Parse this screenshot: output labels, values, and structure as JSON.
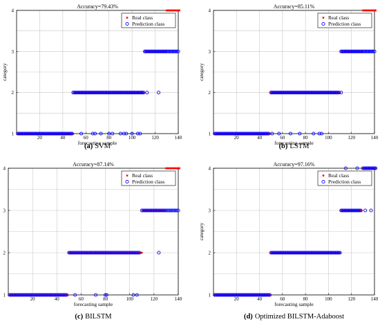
{
  "chart_data": [
    {
      "type": "scatter",
      "title": "Accuracy=79.43%",
      "caption_tag": "(a)",
      "caption_name": "SVM",
      "xlabel": "forecasting sample",
      "ylabel": "category",
      "xlim": [
        0,
        140
      ],
      "ylim": [
        1,
        4
      ],
      "xticks": [
        "20",
        "40",
        "60",
        "80",
        "100",
        "120",
        "140"
      ],
      "yticks": [
        "1",
        "2",
        "3",
        "4"
      ],
      "grid": true,
      "legend": "top-right",
      "series": [
        {
          "name": "Real class",
          "color": "#ff0000",
          "marker": "star",
          "segments": [
            {
              "from": 1,
              "to": 49,
              "y": 1
            },
            {
              "from": 50,
              "to": 110,
              "y": 2
            },
            {
              "from": 111,
              "to": 129,
              "y": 3
            },
            {
              "from": 130,
              "to": 141,
              "y": 4
            }
          ]
        },
        {
          "name": "Prediction class",
          "color": "#0000ff",
          "marker": "circle",
          "segments": [
            {
              "from": 1,
              "to": 48,
              "y": 1
            },
            {
              "from": 49,
              "to": 110,
              "y": 2
            },
            {
              "from": 111,
              "to": 140,
              "y": 3
            }
          ],
          "points": [
            [
              56,
              1
            ],
            [
              66,
              1
            ],
            [
              68,
              1
            ],
            [
              73,
              1
            ],
            [
              80,
              1
            ],
            [
              83,
              1
            ],
            [
              90,
              1
            ],
            [
              93,
              1
            ],
            [
              95,
              1
            ],
            [
              100,
              1
            ],
            [
              105,
              1
            ],
            [
              107,
              1
            ],
            [
              113,
              2
            ],
            [
              123,
              2
            ]
          ]
        }
      ]
    },
    {
      "type": "scatter",
      "title": "Accuracy=85.11%",
      "caption_tag": "(b)",
      "caption_name": "LSTM",
      "xlabel": "forecasting sample",
      "ylabel": "category",
      "xlim": [
        0,
        140
      ],
      "ylim": [
        1,
        4
      ],
      "xticks": [
        "20",
        "40",
        "60",
        "80",
        "100",
        "120",
        "140"
      ],
      "yticks": [
        "1",
        "2",
        "3",
        "4"
      ],
      "grid": true,
      "legend": "top-right",
      "series": [
        {
          "name": "Real class",
          "color": "#ff0000",
          "marker": "star",
          "segments": [
            {
              "from": 1,
              "to": 49,
              "y": 1
            },
            {
              "from": 50,
              "to": 110,
              "y": 2
            },
            {
              "from": 111,
              "to": 129,
              "y": 3
            },
            {
              "from": 130,
              "to": 141,
              "y": 4
            }
          ]
        },
        {
          "name": "Prediction class",
          "color": "#0000ff",
          "marker": "circle",
          "segments": [
            {
              "from": 1,
              "to": 48,
              "y": 1
            },
            {
              "from": 50,
              "to": 109,
              "y": 2
            },
            {
              "from": 111,
              "to": 140,
              "y": 3
            }
          ],
          "points": [
            [
              51,
              1
            ],
            [
              57,
              1
            ],
            [
              67,
              1
            ],
            [
              75,
              1
            ],
            [
              87,
              1
            ],
            [
              92,
              1
            ],
            [
              94,
              1
            ],
            [
              111,
              2
            ]
          ]
        }
      ]
    },
    {
      "type": "scatter",
      "title": "Accuracy=87.14%",
      "caption_tag": "(c)",
      "caption_name": "BILSTM",
      "xlabel": "forecasting sample",
      "ylabel": "category",
      "xlim": [
        0,
        140
      ],
      "ylim": [
        1,
        4
      ],
      "xticks": [
        "20",
        "40",
        "60",
        "80",
        "100",
        "120",
        "140"
      ],
      "yticks": [
        "1",
        "2",
        "3",
        "4"
      ],
      "grid": true,
      "legend": "top-right",
      "series": [
        {
          "name": "Real class",
          "color": "#ff0000",
          "marker": "star",
          "segments": [
            {
              "from": 1,
              "to": 49,
              "y": 1
            },
            {
              "from": 50,
              "to": 110,
              "y": 2
            },
            {
              "from": 111,
              "to": 129,
              "y": 3
            },
            {
              "from": 130,
              "to": 141,
              "y": 4
            }
          ]
        },
        {
          "name": "Prediction class",
          "color": "#0000ff",
          "marker": "circle",
          "segments": [
            {
              "from": 1,
              "to": 48,
              "y": 1
            },
            {
              "from": 50,
              "to": 108,
              "y": 2
            },
            {
              "from": 110,
              "to": 140,
              "y": 3
            }
          ],
          "points": [
            [
              55,
              1
            ],
            [
              72,
              1
            ],
            [
              80,
              1
            ],
            [
              81,
              1
            ],
            [
              103,
              1
            ],
            [
              106,
              1
            ],
            [
              124,
              2
            ]
          ]
        }
      ]
    },
    {
      "type": "scatter",
      "title": "Accuracy=97.16%",
      "caption_tag": "(d)",
      "caption_name": "Optimized BILSTM-Adaboost",
      "xlabel": "forecasting sample",
      "ylabel": "category",
      "xlim": [
        0,
        140
      ],
      "ylim": [
        1,
        4
      ],
      "xticks": [
        "20",
        "40",
        "60",
        "80",
        "100",
        "120",
        "140"
      ],
      "yticks": [
        "1",
        "2",
        "3",
        "4"
      ],
      "grid": true,
      "legend": "top-right",
      "series": [
        {
          "name": "Real class",
          "color": "#ff0000",
          "marker": "star",
          "segments": [
            {
              "from": 1,
              "to": 49,
              "y": 1
            },
            {
              "from": 50,
              "to": 110,
              "y": 2
            },
            {
              "from": 111,
              "to": 129,
              "y": 3
            },
            {
              "from": 130,
              "to": 141,
              "y": 4
            }
          ]
        },
        {
          "name": "Prediction class",
          "color": "#0000ff",
          "marker": "circle",
          "segments": [
            {
              "from": 1,
              "to": 49,
              "y": 1
            },
            {
              "from": 50,
              "to": 110,
              "y": 2
            },
            {
              "from": 111,
              "to": 128,
              "y": 3
            },
            {
              "from": 130,
              "to": 141,
              "y": 4
            }
          ],
          "points": [
            [
              115,
              4
            ],
            [
              125,
              4
            ],
            [
              132,
              3
            ],
            [
              137,
              3
            ]
          ]
        }
      ]
    }
  ]
}
